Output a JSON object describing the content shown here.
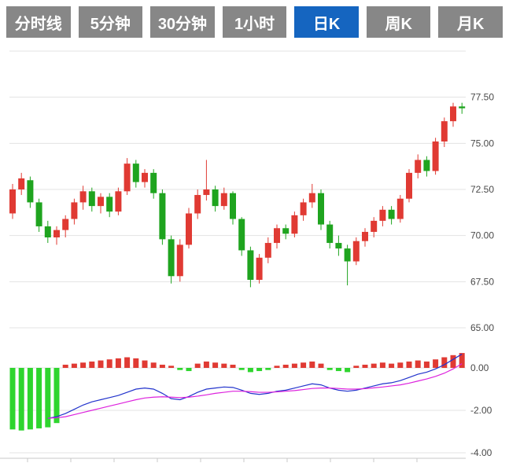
{
  "toolbar": {
    "active_color": "#1565c0",
    "inactive_color": "#878787",
    "buttons": [
      {
        "label": "分时线",
        "active": false
      },
      {
        "label": "5分钟",
        "active": false
      },
      {
        "label": "30分钟",
        "active": false
      },
      {
        "label": "1小时",
        "active": false
      },
      {
        "label": "日K",
        "active": true
      },
      {
        "label": "周K",
        "active": false
      },
      {
        "label": "月K",
        "active": false
      }
    ]
  },
  "chart_data": {
    "type": "candlestick",
    "title": "",
    "legend": [],
    "grid": true,
    "price_axis": {
      "top_gridline": 80,
      "values": [
        77.5,
        75.0,
        72.5,
        70.0,
        67.5,
        65.0
      ],
      "labels": [
        "77.50",
        "75.00",
        "72.50",
        "70.00",
        "67.50",
        "65.00"
      ],
      "range": [
        65,
        80
      ],
      "position": "right"
    },
    "macd_axis": {
      "values": [
        0,
        -2,
        -4
      ],
      "labels": [
        "0.00",
        "-2.00",
        "-4.00"
      ],
      "range": [
        -4.3,
        1.0
      ],
      "position": "right"
    },
    "colors": {
      "up": "#e03a33",
      "down": "#1fa41f",
      "macd_bar_up": "#e03a33",
      "macd_bar_down": "#2ed52e",
      "dif_line": "#2233cc",
      "dea_line": "#dd22dd",
      "grid": "#e3e3e3",
      "axis": "#c8c8c8",
      "label": "#4a4a4a"
    },
    "candles": [
      [
        71.2,
        72.8,
        70.9,
        72.5
      ],
      [
        72.5,
        73.4,
        72.2,
        73.1
      ],
      [
        73.0,
        73.2,
        71.5,
        71.8
      ],
      [
        71.8,
        72.0,
        70.2,
        70.5
      ],
      [
        70.5,
        70.8,
        69.6,
        69.9
      ],
      [
        69.9,
        70.5,
        69.5,
        70.3
      ],
      [
        70.3,
        71.1,
        69.9,
        70.9
      ],
      [
        70.9,
        72.0,
        70.6,
        71.8
      ],
      [
        71.8,
        72.7,
        71.4,
        72.4
      ],
      [
        72.4,
        72.6,
        71.3,
        71.6
      ],
      [
        71.6,
        72.3,
        71.2,
        72.1
      ],
      [
        72.1,
        72.3,
        71.0,
        71.3
      ],
      [
        71.3,
        72.6,
        71.1,
        72.4
      ],
      [
        72.4,
        74.2,
        72.2,
        73.9
      ],
      [
        73.9,
        74.1,
        72.6,
        72.9
      ],
      [
        72.9,
        73.6,
        72.6,
        73.4
      ],
      [
        73.4,
        73.6,
        72.0,
        72.3
      ],
      [
        72.3,
        72.5,
        69.5,
        69.8
      ],
      [
        69.8,
        70.0,
        67.4,
        67.8
      ],
      [
        67.8,
        69.8,
        67.5,
        69.5
      ],
      [
        69.5,
        71.5,
        69.3,
        71.2
      ],
      [
        71.2,
        72.5,
        70.9,
        72.2
      ],
      [
        72.2,
        74.1,
        71.9,
        72.5
      ],
      [
        72.5,
        72.7,
        71.3,
        71.6
      ],
      [
        71.6,
        72.6,
        71.4,
        72.3
      ],
      [
        72.3,
        72.4,
        70.6,
        70.9
      ],
      [
        70.9,
        71.0,
        68.9,
        69.2
      ],
      [
        69.2,
        69.4,
        67.2,
        67.6
      ],
      [
        67.6,
        69.0,
        67.4,
        68.8
      ],
      [
        68.8,
        69.9,
        68.5,
        69.6
      ],
      [
        69.6,
        70.6,
        69.3,
        70.4
      ],
      [
        70.4,
        70.6,
        69.8,
        70.1
      ],
      [
        70.1,
        71.3,
        69.9,
        71.1
      ],
      [
        71.1,
        72.0,
        70.8,
        71.8
      ],
      [
        71.8,
        72.8,
        71.5,
        72.3
      ],
      [
        72.3,
        72.5,
        70.3,
        70.6
      ],
      [
        70.6,
        70.8,
        69.3,
        69.6
      ],
      [
        69.6,
        70.0,
        68.9,
        69.3
      ],
      [
        69.3,
        69.5,
        67.3,
        68.6
      ],
      [
        68.6,
        69.9,
        68.4,
        69.7
      ],
      [
        69.7,
        70.4,
        69.4,
        70.2
      ],
      [
        70.2,
        71.0,
        69.9,
        70.8
      ],
      [
        70.8,
        71.6,
        70.5,
        71.4
      ],
      [
        71.4,
        71.6,
        70.6,
        70.9
      ],
      [
        70.9,
        72.2,
        70.7,
        72.0
      ],
      [
        72.0,
        73.6,
        71.8,
        73.4
      ],
      [
        73.4,
        74.4,
        73.1,
        74.1
      ],
      [
        74.1,
        74.3,
        73.2,
        73.5
      ],
      [
        73.5,
        75.3,
        73.3,
        75.1
      ],
      [
        75.1,
        76.4,
        74.8,
        76.2
      ],
      [
        76.2,
        77.2,
        75.9,
        77.0
      ],
      [
        77.0,
        77.2,
        76.6,
        76.9
      ]
    ],
    "macd": {
      "hist": [
        -2.9,
        -2.95,
        -2.9,
        -2.85,
        -2.8,
        -2.6,
        0.15,
        0.2,
        0.25,
        0.3,
        0.35,
        0.4,
        0.45,
        0.5,
        0.45,
        0.35,
        0.25,
        0.15,
        0.1,
        -0.1,
        -0.15,
        0.2,
        0.3,
        0.25,
        0.2,
        0.15,
        -0.1,
        -0.2,
        -0.15,
        -0.1,
        0.1,
        0.15,
        0.2,
        0.25,
        0.3,
        0.2,
        -0.1,
        -0.15,
        -0.2,
        0.1,
        0.15,
        0.2,
        0.25,
        0.2,
        0.25,
        0.3,
        0.35,
        0.3,
        0.4,
        0.5,
        0.6,
        0.7
      ],
      "dif": [
        null,
        null,
        null,
        null,
        -2.38,
        -2.3,
        -2.15,
        -1.95,
        -1.75,
        -1.6,
        -1.5,
        -1.4,
        -1.3,
        -1.15,
        -1.0,
        -0.95,
        -1.0,
        -1.2,
        -1.45,
        -1.5,
        -1.35,
        -1.15,
        -1.0,
        -0.95,
        -0.9,
        -0.92,
        -1.05,
        -1.2,
        -1.25,
        -1.2,
        -1.1,
        -1.05,
        -0.95,
        -0.85,
        -0.75,
        -0.8,
        -0.95,
        -1.05,
        -1.1,
        -1.05,
        -0.95,
        -0.85,
        -0.75,
        -0.7,
        -0.6,
        -0.45,
        -0.3,
        -0.2,
        -0.05,
        0.15,
        0.4,
        0.65
      ],
      "dea": [
        null,
        null,
        null,
        null,
        -2.37,
        -2.35,
        -2.3,
        -2.2,
        -2.1,
        -2.0,
        -1.9,
        -1.8,
        -1.7,
        -1.6,
        -1.5,
        -1.42,
        -1.38,
        -1.36,
        -1.38,
        -1.4,
        -1.38,
        -1.33,
        -1.27,
        -1.2,
        -1.15,
        -1.1,
        -1.1,
        -1.12,
        -1.15,
        -1.15,
        -1.13,
        -1.1,
        -1.07,
        -1.02,
        -0.97,
        -0.95,
        -0.95,
        -0.97,
        -1.0,
        -1.0,
        -0.98,
        -0.94,
        -0.9,
        -0.85,
        -0.8,
        -0.72,
        -0.62,
        -0.52,
        -0.4,
        -0.25,
        -0.05,
        0.2
      ]
    }
  }
}
